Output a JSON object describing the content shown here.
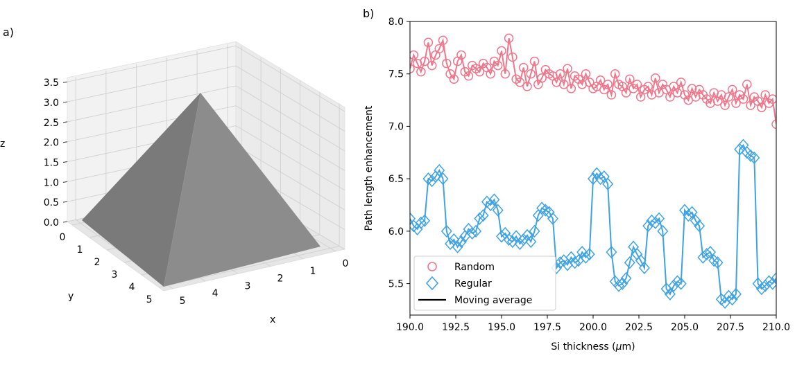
{
  "chart_data": [
    {
      "panel_label": "a)",
      "type": "surface3d",
      "description_shape": "square pyramid",
      "xlabel": "x",
      "ylabel": "y",
      "zlabel": "z",
      "x_ticks": [
        "0",
        "1",
        "2",
        "3",
        "4",
        "5"
      ],
      "y_ticks": [
        "0",
        "1",
        "2",
        "3",
        "4",
        "5"
      ],
      "z_ticks": [
        "0.0",
        "0.5",
        "1.0",
        "1.5",
        "2.0",
        "2.5",
        "3.0",
        "3.5"
      ],
      "xlim": [
        0,
        5
      ],
      "ylim": [
        0,
        5
      ],
      "zlim": [
        0,
        3.5
      ],
      "base_corners": [
        [
          0,
          0
        ],
        [
          5,
          0
        ],
        [
          5,
          5
        ],
        [
          0,
          5
        ]
      ],
      "apex": [
        2.5,
        2.5,
        3.5
      ],
      "face_color": "#808080",
      "grid": true
    },
    {
      "panel_label": "b)",
      "type": "scatter",
      "xlabel": "Si thickness (",
      "xlabel_mu": "μ",
      "xlabel_unit": "m)",
      "ylabel": "Path length enhancement",
      "xlim": [
        190,
        210
      ],
      "ylim": [
        5.2,
        8.0
      ],
      "x_ticks": [
        "190.0",
        "192.5",
        "195.0",
        "197.5",
        "200.0",
        "202.5",
        "205.0",
        "207.5",
        "210.0"
      ],
      "y_ticks": [
        "5.5",
        "6.0",
        "6.5",
        "7.0",
        "7.5",
        "8.0"
      ],
      "grid": false,
      "legend_position": "bottom-left",
      "series": [
        {
          "name": "Random",
          "marker": "circle",
          "color": "#f0768b",
          "x": [
            190.0,
            190.2,
            190.4,
            190.6,
            190.8,
            191.0,
            191.2,
            191.4,
            191.6,
            191.8,
            192.0,
            192.2,
            192.4,
            192.6,
            192.8,
            193.0,
            193.2,
            193.4,
            193.6,
            193.8,
            194.0,
            194.2,
            194.4,
            194.6,
            194.8,
            195.0,
            195.2,
            195.4,
            195.6,
            195.8,
            196.0,
            196.2,
            196.4,
            196.6,
            196.8,
            197.0,
            197.2,
            197.4,
            197.6,
            197.8,
            198.0,
            198.2,
            198.4,
            198.6,
            198.8,
            199.0,
            199.2,
            199.4,
            199.6,
            199.8,
            200.0,
            200.2,
            200.4,
            200.6,
            200.8,
            201.0,
            201.2,
            201.4,
            201.6,
            201.8,
            202.0,
            202.2,
            202.4,
            202.6,
            202.8,
            203.0,
            203.2,
            203.4,
            203.6,
            203.8,
            204.0,
            204.2,
            204.4,
            204.6,
            204.8,
            205.0,
            205.2,
            205.4,
            205.6,
            205.8,
            206.0,
            206.2,
            206.4,
            206.6,
            206.8,
            207.0,
            207.2,
            207.4,
            207.6,
            207.8,
            208.0,
            208.2,
            208.4,
            208.6,
            208.8,
            209.0,
            209.2,
            209.4,
            209.6,
            209.8,
            210.0
          ],
          "y": [
            7.55,
            7.68,
            7.6,
            7.52,
            7.62,
            7.8,
            7.58,
            7.68,
            7.74,
            7.82,
            7.6,
            7.5,
            7.45,
            7.62,
            7.68,
            7.52,
            7.48,
            7.58,
            7.55,
            7.52,
            7.6,
            7.56,
            7.5,
            7.62,
            7.58,
            7.72,
            7.5,
            7.84,
            7.66,
            7.45,
            7.42,
            7.56,
            7.38,
            7.5,
            7.62,
            7.4,
            7.46,
            7.54,
            7.5,
            7.48,
            7.42,
            7.5,
            7.4,
            7.55,
            7.36,
            7.48,
            7.45,
            7.4,
            7.5,
            7.42,
            7.36,
            7.38,
            7.44,
            7.35,
            7.4,
            7.3,
            7.5,
            7.4,
            7.38,
            7.32,
            7.45,
            7.36,
            7.4,
            7.28,
            7.35,
            7.38,
            7.3,
            7.46,
            7.32,
            7.4,
            7.35,
            7.28,
            7.38,
            7.32,
            7.42,
            7.3,
            7.25,
            7.36,
            7.28,
            7.35,
            7.3,
            7.26,
            7.22,
            7.32,
            7.24,
            7.3,
            7.2,
            7.28,
            7.35,
            7.22,
            7.3,
            7.26,
            7.4,
            7.2,
            7.28,
            7.24,
            7.18,
            7.3,
            7.22,
            7.26,
            7.02
          ]
        },
        {
          "name": "Regular",
          "marker": "diamond",
          "color": "#3fa3e3",
          "x": [
            190.0,
            190.2,
            190.4,
            190.6,
            190.8,
            191.0,
            191.2,
            191.4,
            191.6,
            191.8,
            192.0,
            192.2,
            192.4,
            192.6,
            192.8,
            193.0,
            193.2,
            193.4,
            193.6,
            193.8,
            194.0,
            194.2,
            194.4,
            194.6,
            194.8,
            195.0,
            195.2,
            195.4,
            195.6,
            195.8,
            196.0,
            196.2,
            196.4,
            196.6,
            196.8,
            197.0,
            197.2,
            197.4,
            197.6,
            197.8,
            198.0,
            198.2,
            198.4,
            198.6,
            198.8,
            199.0,
            199.2,
            199.4,
            199.6,
            199.8,
            200.0,
            200.2,
            200.4,
            200.6,
            200.8,
            201.0,
            201.2,
            201.4,
            201.6,
            201.8,
            202.0,
            202.2,
            202.4,
            202.6,
            202.8,
            203.0,
            203.2,
            203.4,
            203.6,
            203.8,
            204.0,
            204.2,
            204.4,
            204.6,
            204.8,
            205.0,
            205.2,
            205.4,
            205.6,
            205.8,
            206.0,
            206.2,
            206.4,
            206.6,
            206.8,
            207.0,
            207.2,
            207.4,
            207.6,
            207.8,
            208.0,
            208.2,
            208.4,
            208.6,
            208.8,
            209.0,
            209.2,
            209.4,
            209.6,
            209.8,
            210.0
          ],
          "y": [
            6.12,
            6.05,
            6.02,
            6.08,
            6.1,
            6.5,
            6.48,
            6.52,
            6.58,
            6.5,
            6.0,
            5.88,
            5.92,
            5.85,
            5.9,
            5.95,
            6.02,
            5.98,
            6.0,
            6.12,
            6.15,
            6.28,
            6.25,
            6.3,
            6.2,
            5.95,
            5.98,
            5.92,
            5.9,
            5.95,
            5.88,
            5.92,
            5.96,
            5.9,
            6.0,
            6.15,
            6.22,
            6.2,
            6.18,
            6.12,
            5.65,
            5.7,
            5.72,
            5.68,
            5.75,
            5.7,
            5.72,
            5.8,
            5.75,
            5.78,
            6.5,
            6.55,
            6.5,
            6.52,
            6.45,
            5.8,
            5.52,
            5.48,
            5.5,
            5.55,
            5.7,
            5.85,
            5.78,
            5.72,
            5.65,
            6.05,
            6.1,
            6.08,
            6.12,
            6.0,
            5.45,
            5.4,
            5.48,
            5.52,
            5.5,
            6.2,
            6.15,
            6.18,
            6.1,
            6.05,
            5.75,
            5.78,
            5.8,
            5.72,
            5.7,
            5.35,
            5.32,
            5.38,
            5.35,
            5.4,
            6.78,
            6.82,
            6.75,
            6.72,
            6.7,
            5.5,
            5.45,
            5.48,
            5.52,
            5.5,
            5.55
          ]
        },
        {
          "name": "Moving average",
          "marker": "line",
          "color": "#000000"
        }
      ]
    }
  ]
}
